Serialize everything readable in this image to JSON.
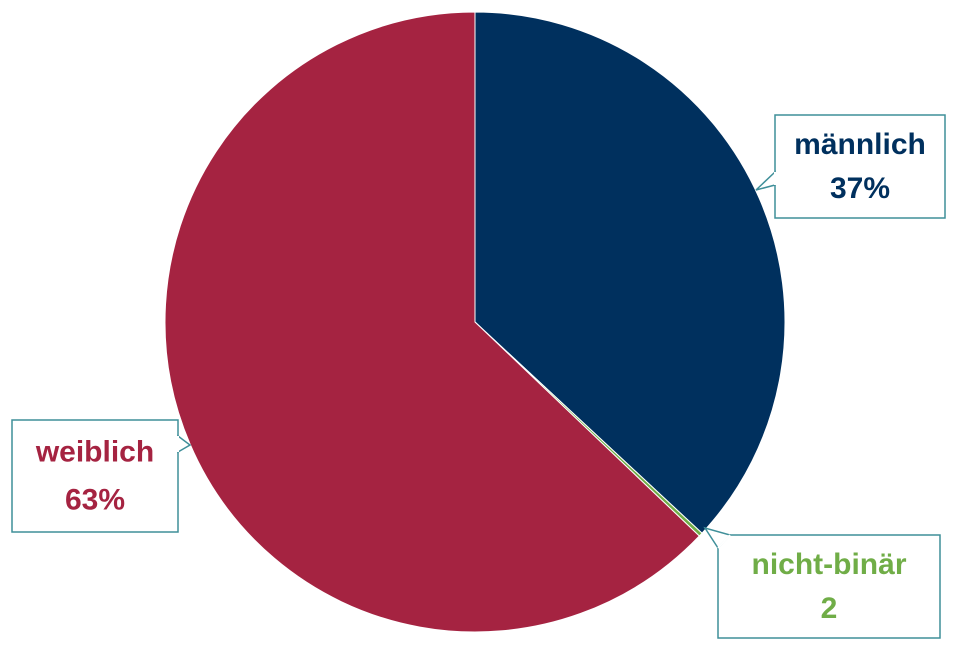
{
  "chart_data": {
    "type": "pie",
    "categories": [
      "männlich",
      "nicht-binär",
      "weiblich"
    ],
    "values": [
      37,
      0.2,
      63
    ],
    "value_labels": [
      "37%",
      null,
      "63%"
    ],
    "counts": [
      null,
      2,
      null
    ],
    "colors": [
      "#00305e",
      "#70ad47",
      "#a52341"
    ]
  }
}
